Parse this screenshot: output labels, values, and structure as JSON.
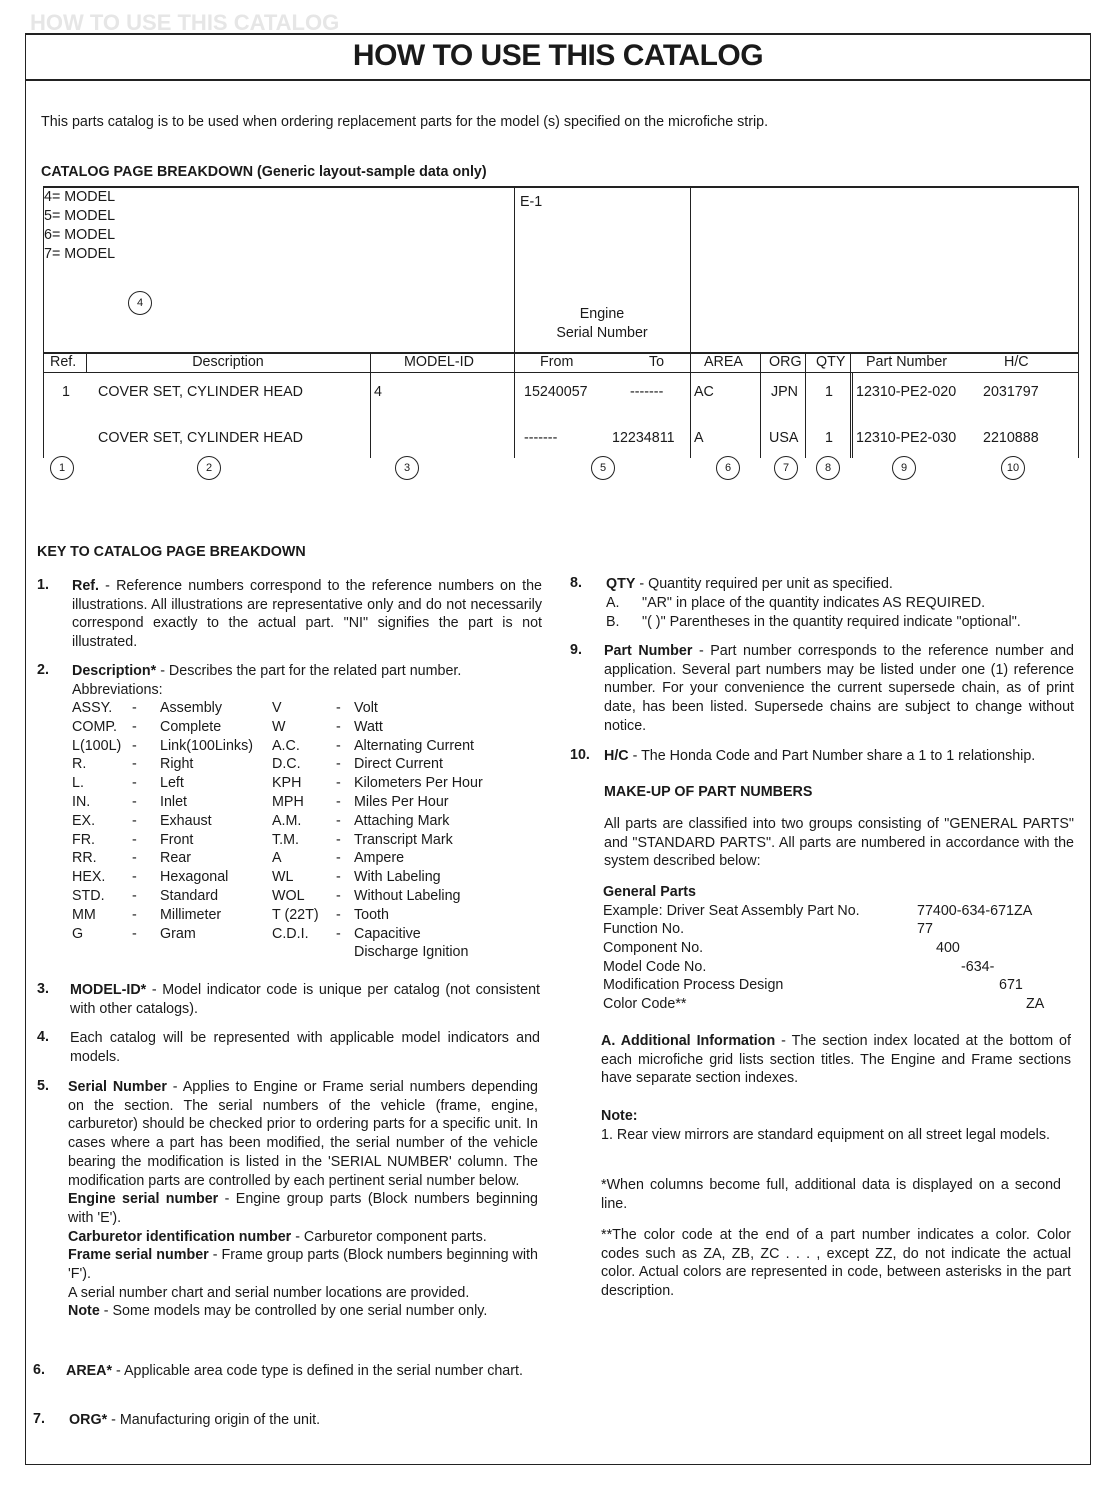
{
  "header": {
    "ghost": "HOW TO USE THIS CATALOG",
    "title": "HOW TO USE THIS CATALOG"
  },
  "intro": "This parts catalog is to be used when ordering replacement parts for the model (s) specified on the microfiche strip.",
  "breakdown": {
    "heading": "CATALOG PAGE BREAKDOWN (Generic layout-sample data only)",
    "models": [
      "4= MODEL",
      "5= MODEL",
      "6= MODEL",
      "7= MODEL"
    ],
    "model_circle": "4",
    "section_code": "E-1",
    "serial_label_1": "Engine",
    "serial_label_2": "Serial Number",
    "columns": [
      "Ref.",
      "Description",
      "MODEL-ID",
      "From",
      "To",
      "AREA",
      "ORG",
      "QTY",
      "Part Number",
      "H/C"
    ],
    "rows": [
      {
        "ref": "1",
        "description": "COVER SET, CYLINDER HEAD",
        "model_id": "4",
        "from": "15240057",
        "to": "-------",
        "area": "AC",
        "org": "JPN",
        "qty": "1",
        "part_number": "12310-PE2-020",
        "hc": "2031797"
      },
      {
        "ref": "",
        "description": "COVER SET, CYLINDER HEAD",
        "model_id": "",
        "from": "-------",
        "to": "12234811",
        "area": "A",
        "org": "USA",
        "qty": "1",
        "part_number": "12310-PE2-030",
        "hc": "2210888"
      }
    ],
    "circles": [
      "1",
      "2",
      "3",
      "5",
      "6",
      "7",
      "8",
      "9",
      "10"
    ]
  },
  "key": {
    "heading": "KEY TO CATALOG PAGE BREAKDOWN",
    "item1": {
      "num": "1.",
      "label": "Ref.",
      "text": " - Reference numbers correspond to the reference numbers on the illustrations. All illustrations are representative only and do not necessarily correspond exactly to the actual part. \"NI\" signifies the part is not illustrated."
    },
    "item2": {
      "num": "2.",
      "label": "Description*",
      "text": " - Describes the part for the related part number.",
      "abbr_label": "Abbreviations:"
    },
    "abbreviations": [
      [
        "ASSY.",
        "-",
        "Assembly",
        "V",
        "-",
        "Volt"
      ],
      [
        "COMP.",
        "-",
        "Complete",
        "W",
        "-",
        "Watt"
      ],
      [
        "L(100L)",
        "-",
        "Link(100Links)",
        "A.C.",
        "-",
        "Alternating Current"
      ],
      [
        "R.",
        "-",
        "Right",
        "D.C.",
        "-",
        "Direct Current"
      ],
      [
        "L.",
        "-",
        "Left",
        "KPH",
        "-",
        "Kilometers Per Hour"
      ],
      [
        "IN.",
        "-",
        "Inlet",
        "MPH",
        "-",
        "Miles Per Hour"
      ],
      [
        "EX.",
        "-",
        "Exhaust",
        "A.M.",
        "-",
        "Attaching Mark"
      ],
      [
        "FR.",
        "-",
        "Front",
        "T.M.",
        "-",
        "Transcript Mark"
      ],
      [
        "RR.",
        "-",
        "Rear",
        "A",
        "-",
        "Ampere"
      ],
      [
        "HEX.",
        "-",
        "Hexagonal",
        "WL",
        "-",
        "With Labeling"
      ],
      [
        "STD.",
        "-",
        "Standard",
        "WOL",
        "-",
        "Without Labeling"
      ],
      [
        "MM",
        "-",
        "Millimeter",
        "T (22T)",
        "-",
        "Tooth"
      ],
      [
        "G",
        "-",
        "Gram",
        "C.D.I.",
        "-",
        "Capacitive"
      ],
      [
        "",
        "",
        "",
        "",
        "",
        "Discharge Ignition"
      ]
    ],
    "item3": {
      "num": "3.",
      "label": "MODEL-ID*",
      "text": " - Model indicator code is unique per catalog (not consistent with other catalogs)."
    },
    "item4": {
      "num": "4.",
      "text": "Each catalog will be represented with applicable model indicators and models."
    },
    "item5": {
      "num": "5.",
      "label": "Serial Number",
      "text": " - Applies to Engine or Frame serial numbers depending on the section. The serial numbers of the vehicle (frame, engine, carburetor) should be checked prior to ordering parts for a specific unit. In cases where a part has been modified, the serial number of the vehicle bearing the modification is listed in the 'SERIAL NUMBER' column. The modification parts are controlled by each pertinent serial number below.",
      "engine_label": "Engine serial number",
      "engine_text": " - Engine group parts (Block numbers beginning with 'E').",
      "carb_label": "Carburetor identification number",
      "carb_text": " - Carburetor component parts.",
      "frame_label": "Frame serial number",
      "frame_text": " - Frame group parts (Block numbers beginning with 'F').",
      "chart_text": "A serial number chart and serial number locations are provided.",
      "note_label": "Note",
      "note_text": " - Some models may be controlled by one serial number only."
    },
    "item6": {
      "num": "6.",
      "label": "AREA*",
      "text": " - Applicable area code type is defined in the serial number chart."
    },
    "item7": {
      "num": "7.",
      "label": "ORG*",
      "text": " - Manufacturing origin of the unit."
    },
    "item8": {
      "num": "8.",
      "label": "QTY",
      "text": " - Quantity required per unit as specified.",
      "a_letter": "A.",
      "a_text": "\"AR\" in place of the quantity indicates AS REQUIRED.",
      "b_letter": "B.",
      "b_text": "\"( )\" Parentheses in the quantity required indicate \"optional\"."
    },
    "item9": {
      "num": "9.",
      "label": "Part Number",
      "text": " - Part number corresponds to the reference number and application. Several part numbers may be listed under one (1) reference number. For your convenience the current supersede chain, as of print date, has been listed. Supersede chains are subject to change without notice."
    },
    "item10": {
      "num": "10.",
      "label": "H/C",
      "text": " - The Honda Code and Part Number share a 1 to 1 relationship."
    }
  },
  "makeup": {
    "heading": "MAKE-UP OF PART NUMBERS",
    "text": "All parts are classified into two groups consisting of \"GENERAL PARTS\" and \"STANDARD PARTS\". All parts are numbered in accordance with the system described below:",
    "general_heading": "General Parts",
    "rows": [
      {
        "label": "Example: Driver Seat Assembly Part No.",
        "value": "77400-634-671ZA"
      },
      {
        "label": "Function No.",
        "value": "77"
      },
      {
        "label": "Component No.",
        "value": "400"
      },
      {
        "label": "Model Code No.",
        "value": "-634-"
      },
      {
        "label": "Modification Process Design",
        "value": "671"
      },
      {
        "label": "Color Code**",
        "value": "ZA"
      }
    ],
    "additional_label": "A. Additional Information",
    "additional_text": " - The section index located at the bottom of each microfiche grid lists section titles. The Engine and Frame sections have separate section indexes.",
    "note_heading": "Note:",
    "note_text": "1. Rear view mirrors are standard equipment on all street legal models.",
    "star_note": "*When columns become full, additional data is displayed on a second line.",
    "double_star_note": "**The color code at the end of a part number indicates a color. Color codes such as ZA, ZB, ZC . . . , except ZZ, do not indicate the actual color. Actual colors are represented in code, between asterisks in the part description."
  }
}
